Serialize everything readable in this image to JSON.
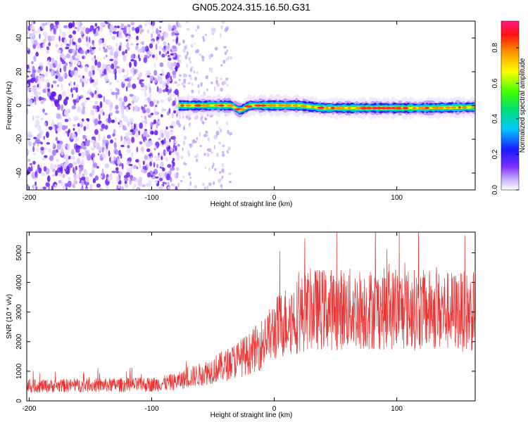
{
  "title": "GN05.2024.315.16.50.G31",
  "chart_data": [
    {
      "type": "heatmap",
      "xlabel": "Height of straight line (km)",
      "ylabel": "Frequency (Hz)",
      "xlim": [
        -202,
        164
      ],
      "ylim": [
        -50,
        50
      ],
      "xticks": [
        -200,
        -100,
        0,
        100
      ],
      "xtick_labels": [
        "-200",
        "-100",
        "0",
        "100"
      ],
      "yticks": [
        -40,
        -20,
        0,
        20,
        40
      ],
      "ytick_labels": [
        "-40",
        "-20",
        "0",
        "20",
        "40"
      ],
      "colorbar": {
        "label": "Normalized spectral amplitude",
        "range": [
          0,
          0.95
        ],
        "ticks": [
          0.0,
          0.2,
          0.4,
          0.6,
          0.8
        ],
        "tick_labels": [
          "0.0",
          "0.2",
          "0.4",
          "0.6",
          "0.8"
        ]
      },
      "signal_band": {
        "x_range": [
          -78,
          164
        ],
        "center_hz_profile": [
          {
            "x": -78,
            "y": 0
          },
          {
            "x": -35,
            "y": 0
          },
          {
            "x": -28,
            "y": -3
          },
          {
            "x": -20,
            "y": 0
          },
          {
            "x": 20,
            "y": 0
          },
          {
            "x": 40,
            "y": -1.5
          },
          {
            "x": 120,
            "y": -1.5
          },
          {
            "x": 164,
            "y": -1
          }
        ],
        "noise_x_range": [
          -202,
          -78
        ]
      }
    },
    {
      "type": "line",
      "xlabel": "Height of straight line (km)",
      "ylabel": "SNR (10 * v/v)",
      "xlim": [
        -202,
        164
      ],
      "ylim": [
        0,
        5700
      ],
      "xticks": [
        -200,
        -100,
        0,
        100
      ],
      "xtick_labels": [
        "-200",
        "-100",
        "0",
        "100"
      ],
      "yticks": [
        0,
        1000,
        2000,
        3000,
        4000,
        5000
      ],
      "ytick_labels": [
        "0",
        "1000",
        "2000",
        "3000",
        "4000",
        "5000"
      ],
      "series_color": "#ee3333",
      "trend": [
        {
          "x": -202,
          "y": 500
        },
        {
          "x": -100,
          "y": 550
        },
        {
          "x": -80,
          "y": 650
        },
        {
          "x": -60,
          "y": 900
        },
        {
          "x": -40,
          "y": 1200
        },
        {
          "x": -20,
          "y": 1600
        },
        {
          "x": -5,
          "y": 2100
        },
        {
          "x": 0,
          "y": 2400
        },
        {
          "x": 10,
          "y": 2700
        },
        {
          "x": 30,
          "y": 3100
        },
        {
          "x": 60,
          "y": 3100
        },
        {
          "x": 100,
          "y": 3100
        },
        {
          "x": 164,
          "y": 3000
        }
      ]
    }
  ]
}
